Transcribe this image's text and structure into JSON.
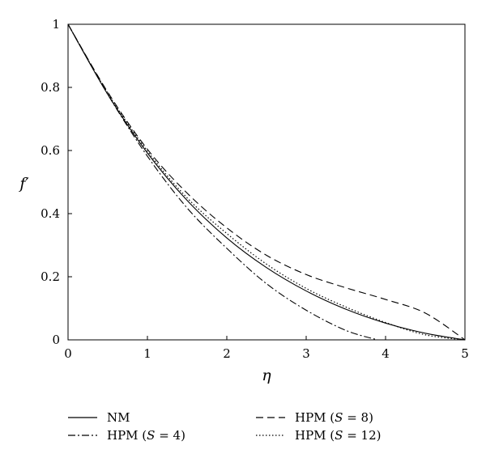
{
  "chart_data": {
    "type": "line",
    "xlabel": "η",
    "ylabel": "f′",
    "xlim": [
      0,
      5
    ],
    "ylim": [
      0,
      1
    ],
    "x_ticks": [
      "0",
      "1",
      "2",
      "3",
      "4",
      "5"
    ],
    "y_ticks": [
      "0",
      "0.2",
      "0.4",
      "0.6",
      "0.8",
      "1"
    ],
    "grid": false,
    "legend_position": "bottom",
    "series": [
      {
        "name": "NM",
        "legend": {
          "prefix": "NM",
          "var": "",
          "suffix": ""
        },
        "style": "solid",
        "x": [
          0,
          0.5,
          1,
          1.5,
          2,
          2.5,
          3,
          3.5,
          4,
          4.5,
          5
        ],
        "y": [
          1,
          0.778,
          0.592,
          0.442,
          0.323,
          0.229,
          0.155,
          0.097,
          0.053,
          0.021,
          0
        ]
      },
      {
        "name": "HPM (S = 4)",
        "legend": {
          "prefix": "HPM (",
          "var": "S",
          "suffix": " = 4)"
        },
        "style": "dashdot",
        "x": [
          0,
          0.5,
          1,
          1.5,
          2,
          2.5,
          3,
          3.5,
          3.9
        ],
        "y": [
          1,
          0.778,
          0.582,
          0.418,
          0.29,
          0.178,
          0.094,
          0.03,
          0
        ]
      },
      {
        "name": "HPM (S = 8)",
        "legend": {
          "prefix": "HPM (",
          "var": "S",
          "suffix": " = 8)"
        },
        "style": "dashed",
        "x": [
          0,
          0.5,
          1,
          1.5,
          2,
          2.5,
          3,
          3.5,
          4,
          4.5,
          5
        ],
        "y": [
          1,
          0.785,
          0.604,
          0.465,
          0.355,
          0.268,
          0.207,
          0.165,
          0.128,
          0.085,
          0
        ]
      },
      {
        "name": "HPM (S = 12)",
        "legend": {
          "prefix": "HPM (",
          "var": "S",
          "suffix": " = 12)"
        },
        "style": "dotted",
        "x": [
          0,
          0.5,
          1,
          1.5,
          2,
          2.5,
          3,
          3.5,
          4,
          4.5,
          5
        ],
        "y": [
          1,
          0.782,
          0.598,
          0.45,
          0.337,
          0.24,
          0.163,
          0.104,
          0.055,
          0.016,
          0
        ]
      }
    ]
  }
}
